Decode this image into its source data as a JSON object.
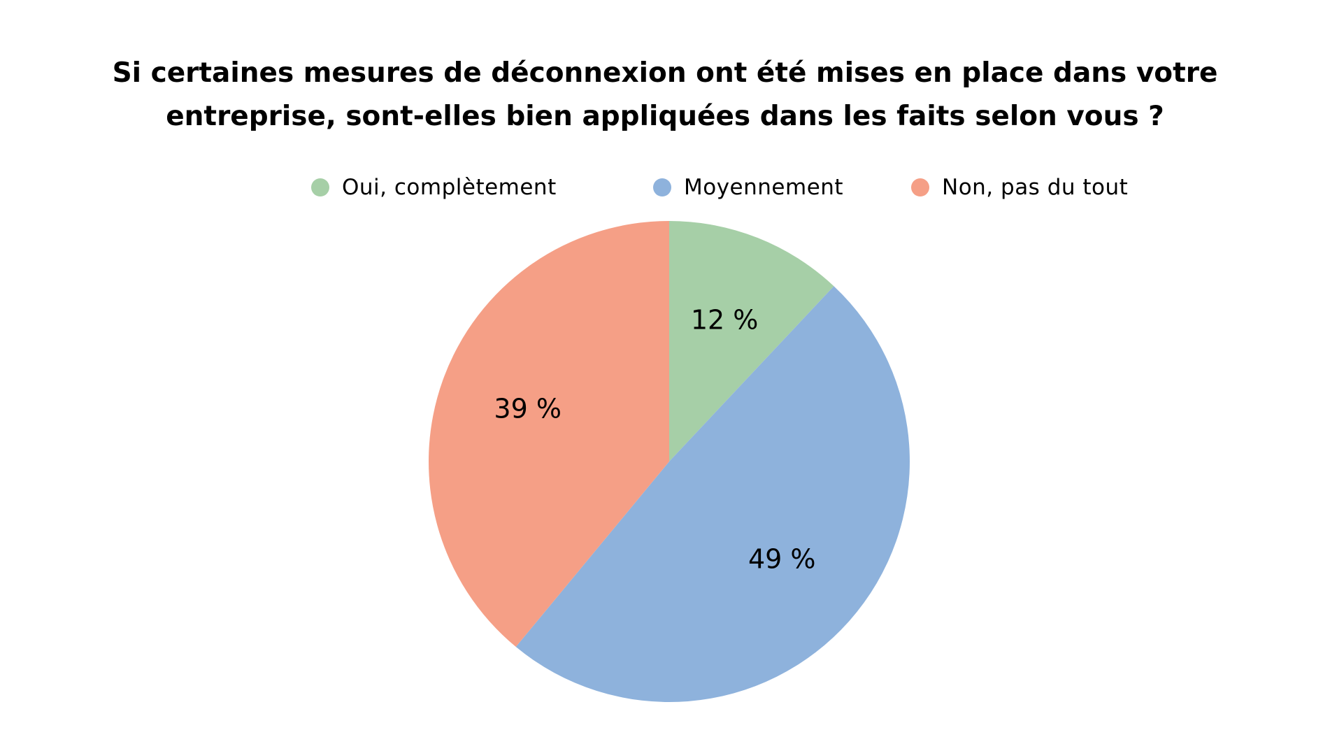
{
  "chart_data": {
    "type": "pie",
    "title": "Si certaines mesures de déconnexion ont été mises en place dans votre entreprise, sont-elles bien appliquées dans les faits selon vous ?",
    "title_lines": [
      "Si certaines mesures de déconnexion ont été mises en place dans votre",
      "entreprise, sont-elles bien appliquées dans les faits selon vous ?"
    ],
    "legend_position": "top",
    "slices": [
      {
        "label": "Oui, complètement",
        "value": 12,
        "display": "12 %",
        "color": "#a6cfa7"
      },
      {
        "label": "Moyennement",
        "value": 49,
        "display": "49 %",
        "color": "#8eb2dc"
      },
      {
        "label": "Non, pas du tout",
        "value": 39,
        "display": "39 %",
        "color": "#f59f86"
      }
    ]
  }
}
